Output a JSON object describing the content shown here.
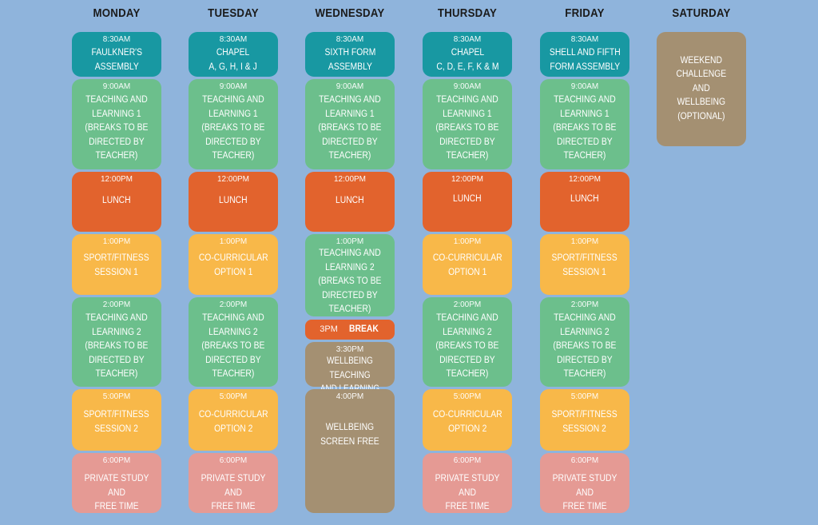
{
  "days": {
    "monday": "MONDAY",
    "tuesday": "TUESDAY",
    "wednesday": "WEDNESDAY",
    "thursday": "THURSDAY",
    "friday": "FRIDAY",
    "saturday": "SATURDAY"
  },
  "colors": {
    "background": "#8fb4dc",
    "assembly": "#1898a2",
    "teaching": "#6cbf8c",
    "lunch": "#e2632d",
    "activity": "#f8b849",
    "private_study": "#e59a94",
    "wellbeing": "#a49072"
  },
  "monday": {
    "b1": {
      "time": "8:30AM",
      "label": "FAULKNER'S\nASSEMBLY"
    },
    "b2": {
      "time": "9:00AM",
      "label": "TEACHING AND\nLEARNING 1\n(BREAKS TO BE\nDIRECTED BY\nTEACHER)"
    },
    "b3": {
      "time": "12:00PM",
      "label": "LUNCH"
    },
    "b4": {
      "time": "1:00PM",
      "label": "SPORT/FITNESS\nSESSION 1"
    },
    "b5": {
      "time": "2:00PM",
      "label": "TEACHING AND\nLEARNING 2\n(BREAKS TO BE\nDIRECTED BY\nTEACHER)"
    },
    "b6": {
      "time": "5:00PM",
      "label": "SPORT/FITNESS\nSESSION 2"
    },
    "b7": {
      "time": "6:00PM",
      "label": "PRIVATE STUDY AND\nFREE TIME"
    }
  },
  "tuesday": {
    "b1": {
      "time": "8:30AM",
      "label": "CHAPEL\nA, G, H, I & J"
    },
    "b2": {
      "time": "9:00AM",
      "label": "TEACHING AND\nLEARNING 1\n(BREAKS TO BE\nDIRECTED BY\nTEACHER)"
    },
    "b3": {
      "time": "12:00PM",
      "label": "LUNCH"
    },
    "b4": {
      "time": "1:00PM",
      "label": "CO-CURRICULAR\nOPTION 1"
    },
    "b5": {
      "time": "2:00PM",
      "label": "TEACHING AND\nLEARNING 2\n(BREAKS TO BE\nDIRECTED BY\nTEACHER)"
    },
    "b6": {
      "time": "5:00PM",
      "label": "CO-CURRICULAR\nOPTION 2"
    },
    "b7": {
      "time": "6:00PM",
      "label": "PRIVATE STUDY AND\nFREE TIME"
    }
  },
  "wednesday": {
    "b1": {
      "time": "8:30AM",
      "label": "SIXTH FORM\nASSEMBLY"
    },
    "b2": {
      "time": "9:00AM",
      "label": "TEACHING AND\nLEARNING 1\n(BREAKS TO BE\nDIRECTED BY\nTEACHER)"
    },
    "b3": {
      "time": "12:00PM",
      "label": "LUNCH"
    },
    "b4": {
      "time": "1:00PM",
      "label": "TEACHING AND\nLEARNING 2\n(BREAKS TO BE\nDIRECTED BY\nTEACHER)"
    },
    "b5": {
      "time": "3PM",
      "label": "BREAK"
    },
    "b6": {
      "time": "3:30PM",
      "label": "WELLBEING TEACHING\nAND LEARNING"
    },
    "b7": {
      "time": "4:00PM",
      "label": "WELLBEING\nSCREEN FREE"
    }
  },
  "thursday": {
    "b1": {
      "time": "8:30AM",
      "label": "CHAPEL\nC, D, E, F, K & M"
    },
    "b2": {
      "time": "9:00AM",
      "label": "TEACHING AND\nLEARNING 1\n(BREAKS TO BE\nDIRECTED BY\nTEACHER)"
    },
    "b3": {
      "time": "12:00PM",
      "label": "LUNCH"
    },
    "b4": {
      "time": "1:00PM",
      "label": "CO-CURRICULAR\nOPTION 1"
    },
    "b5": {
      "time": "2:00PM",
      "label": "TEACHING AND\nLEARNING 2\n(BREAKS TO BE\nDIRECTED BY\nTEACHER)"
    },
    "b6": {
      "time": "5:00PM",
      "label": "CO-CURRICULAR\nOPTION 2"
    },
    "b7": {
      "time": "6:00PM",
      "label": "PRIVATE STUDY AND\nFREE TIME"
    }
  },
  "friday": {
    "b1": {
      "time": "8:30AM",
      "label": "SHELL AND FIFTH\nFORM ASSEMBLY"
    },
    "b2": {
      "time": "9:00AM",
      "label": "TEACHING AND\nLEARNING 1\n(BREAKS TO BE\nDIRECTED BY\nTEACHER)"
    },
    "b3": {
      "time": "12:00PM",
      "label": "LUNCH"
    },
    "b4": {
      "time": "1:00PM",
      "label": "SPORT/FITNESS\nSESSION 1"
    },
    "b5": {
      "time": "2:00PM",
      "label": "TEACHING AND\nLEARNING 2\n(BREAKS TO BE\nDIRECTED BY\nTEACHER)"
    },
    "b6": {
      "time": "5:00PM",
      "label": "SPORT/FITNESS\nSESSION 2"
    },
    "b7": {
      "time": "6:00PM",
      "label": "PRIVATE STUDY AND\nFREE TIME"
    }
  },
  "saturday": {
    "b1": {
      "label": "WEEKEND\nCHALLENGE\nAND\nWELLBEING\n(OPTIONAL)"
    }
  }
}
